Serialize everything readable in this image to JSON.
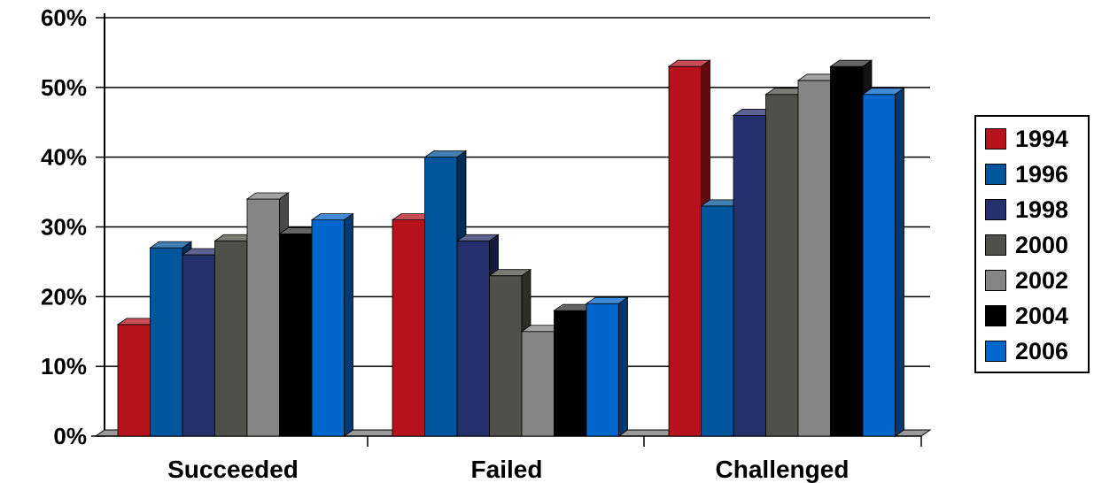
{
  "chart_data": {
    "type": "bar",
    "title": "",
    "xlabel": "",
    "ylabel": "",
    "ylim": [
      0,
      60
    ],
    "yticks": [
      "0%",
      "10%",
      "20%",
      "30%",
      "40%",
      "50%",
      "60%"
    ],
    "grid": true,
    "legend_position": "right",
    "categories": [
      "Succeeded",
      "Failed",
      "Challenged"
    ],
    "series": [
      {
        "name": "1994",
        "color": "#b5121b",
        "values": [
          16,
          31,
          53
        ]
      },
      {
        "name": "1996",
        "color": "#00569c",
        "values": [
          27,
          40,
          33
        ]
      },
      {
        "name": "1998",
        "color": "#252f6b",
        "values": [
          26,
          28,
          46
        ]
      },
      {
        "name": "2000",
        "color": "#50504a",
        "values": [
          28,
          23,
          49
        ]
      },
      {
        "name": "2002",
        "color": "#858585",
        "values": [
          34,
          15,
          51
        ]
      },
      {
        "name": "2004",
        "color": "#000000",
        "values": [
          29,
          18,
          53
        ]
      },
      {
        "name": "2006",
        "color": "#0066cc",
        "values": [
          31,
          19,
          49
        ]
      }
    ]
  }
}
